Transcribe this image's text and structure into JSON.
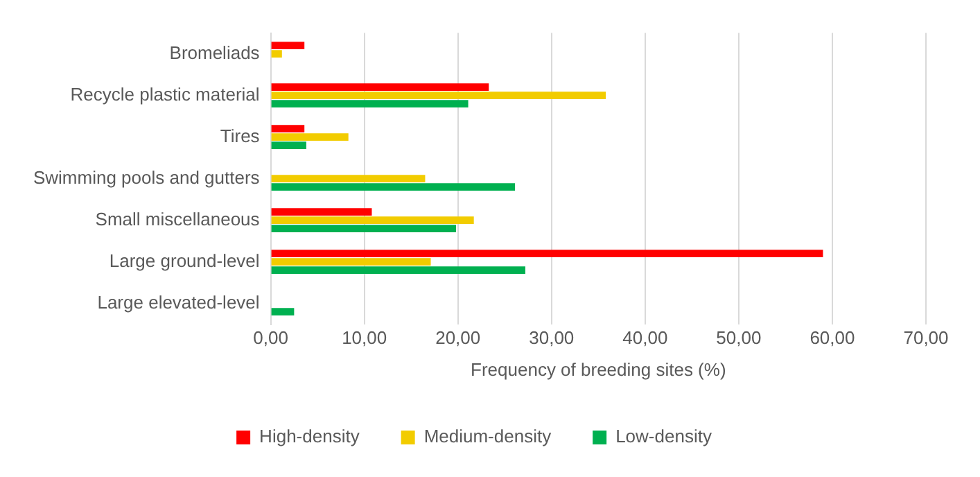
{
  "chart_data": {
    "type": "bar",
    "orientation": "horizontal",
    "xlabel": "Frequency of breeding sites (%)",
    "categories": [
      "Bromeliads",
      "Recycle plastic material",
      "Tires",
      "Swimming pools and gutters",
      "Small miscellaneous",
      "Large ground-level",
      "Large elevated-level"
    ],
    "series": [
      {
        "name": "High-density",
        "color": "#ff0000",
        "values": [
          3.6,
          23.3,
          3.6,
          null,
          10.8,
          59.0,
          null
        ]
      },
      {
        "name": "Medium-density",
        "color": "#f2cc00",
        "values": [
          1.2,
          35.8,
          8.3,
          16.5,
          21.7,
          17.1,
          null
        ]
      },
      {
        "name": "Low-density",
        "color": "#00b050",
        "values": [
          null,
          21.1,
          3.8,
          26.1,
          19.8,
          27.2,
          2.5
        ]
      }
    ],
    "xlim": [
      0,
      70
    ],
    "xticks": [
      {
        "value": 0,
        "label": "0,00"
      },
      {
        "value": 10,
        "label": "10,00"
      },
      {
        "value": 20,
        "label": "20,00"
      },
      {
        "value": 30,
        "label": "30,00"
      },
      {
        "value": 40,
        "label": "40,00"
      },
      {
        "value": 50,
        "label": "50,00"
      },
      {
        "value": 60,
        "label": "60,00"
      },
      {
        "value": 70,
        "label": "70,00"
      }
    ],
    "grid": "x",
    "legend": "bottom"
  }
}
